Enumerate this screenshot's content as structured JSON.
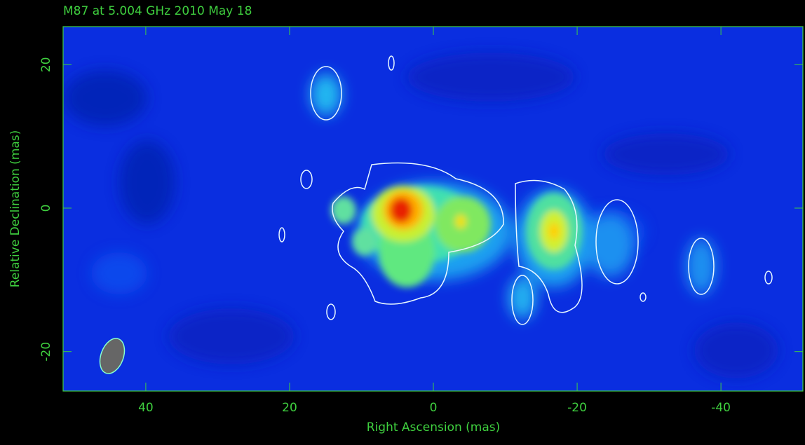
{
  "chart_data": {
    "type": "image",
    "title": "M87 at 5.004 GHz 2010 May 18",
    "xlabel": "Right Ascension  (mas)",
    "ylabel": "Relative Declination  (mas)",
    "xlim": [
      51.5,
      -51.4
    ],
    "xticks": [
      40,
      20,
      0,
      -20,
      -40
    ],
    "ylim": [
      -25.5,
      25.3
    ],
    "yticks": [
      -20,
      0,
      20
    ],
    "frame_color": "#3fd03f"
  }
}
